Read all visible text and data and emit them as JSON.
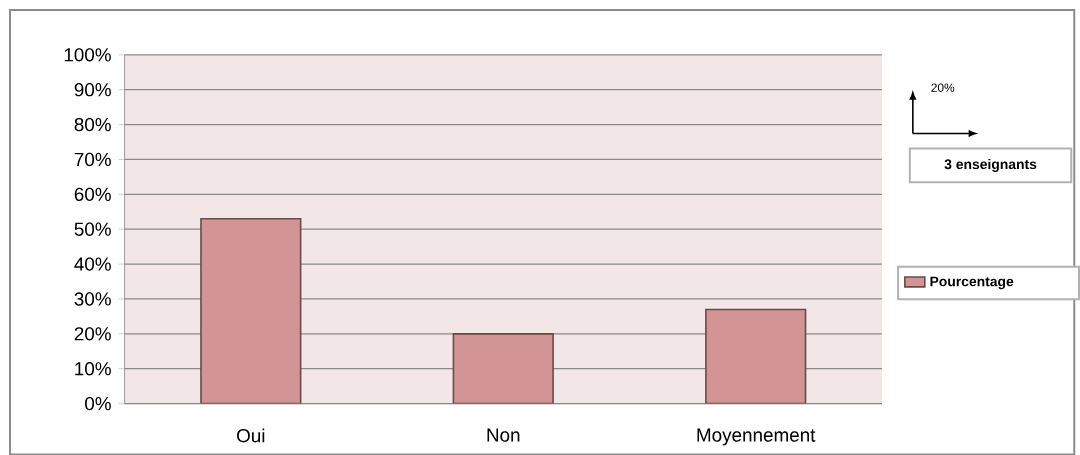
{
  "chart_data": {
    "type": "bar",
    "categories": [
      "Oui",
      "Non",
      "Moyennement"
    ],
    "series": [
      {
        "name": "Pourcentage",
        "color": "#d29494",
        "values": [
          53,
          20,
          27
        ]
      }
    ],
    "ylim": [
      0,
      100
    ],
    "yticks": [
      {
        "value": 0,
        "label": "0%"
      },
      {
        "value": 10,
        "label": "10%"
      },
      {
        "value": 20,
        "label": "20%"
      },
      {
        "value": 30,
        "label": "30%"
      },
      {
        "value": 40,
        "label": "40%"
      },
      {
        "value": 50,
        "label": "50%"
      },
      {
        "value": 60,
        "label": "60%"
      },
      {
        "value": 70,
        "label": "70%"
      },
      {
        "value": 80,
        "label": "80%"
      },
      {
        "value": 90,
        "label": "90%"
      },
      {
        "value": 100,
        "label": "100%"
      }
    ],
    "grid": "y",
    "legend": "right",
    "annotations": [
      "20%",
      "3 enseignants"
    ]
  }
}
